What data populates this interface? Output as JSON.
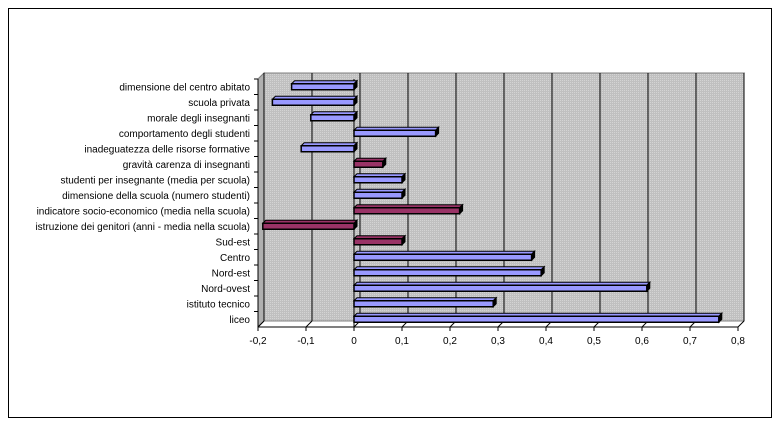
{
  "chart_data": {
    "type": "bar",
    "orientation": "horizontal",
    "title": "",
    "xlabel": "",
    "ylabel": "",
    "xlim": [
      -0.2,
      0.8
    ],
    "x_ticks": [
      "-0,2",
      "-0,1",
      "0",
      "0,1",
      "0,2",
      "0,3",
      "0,4",
      "0,5",
      "0,6",
      "0,7",
      "0,8"
    ],
    "grid": "vertical",
    "legend": "none",
    "categories": [
      "dimensione del centro abitato",
      "scuola privata",
      "morale degli insegnanti",
      "comportamento degli studenti",
      "inadeguatezza delle risorse formative",
      "gravità carenza di insegnanti",
      "studenti per insegnante (media per scuola)",
      "dimensione della scuola (numero studenti)",
      "indicatore socio-economico (media nella scuola)",
      "istruzione dei genitori (anni - media nella scuola)",
      "Sud-est",
      "Centro",
      "Nord-est",
      "Nord-ovest",
      "istituto tecnico",
      "liceo"
    ],
    "values": [
      -0.13,
      -0.17,
      -0.09,
      0.17,
      -0.11,
      0.06,
      0.1,
      0.1,
      0.22,
      -0.19,
      0.1,
      0.37,
      0.39,
      0.61,
      0.29,
      0.76
    ],
    "bar_colors": [
      "#9999ff",
      "#9999ff",
      "#9999ff",
      "#9999ff",
      "#9999ff",
      "#993366",
      "#9999ff",
      "#9999ff",
      "#993366",
      "#993366",
      "#993366",
      "#9999ff",
      "#9999ff",
      "#9999ff",
      "#9999ff",
      "#9999ff"
    ],
    "plot_background": "#c0c0c0"
  }
}
